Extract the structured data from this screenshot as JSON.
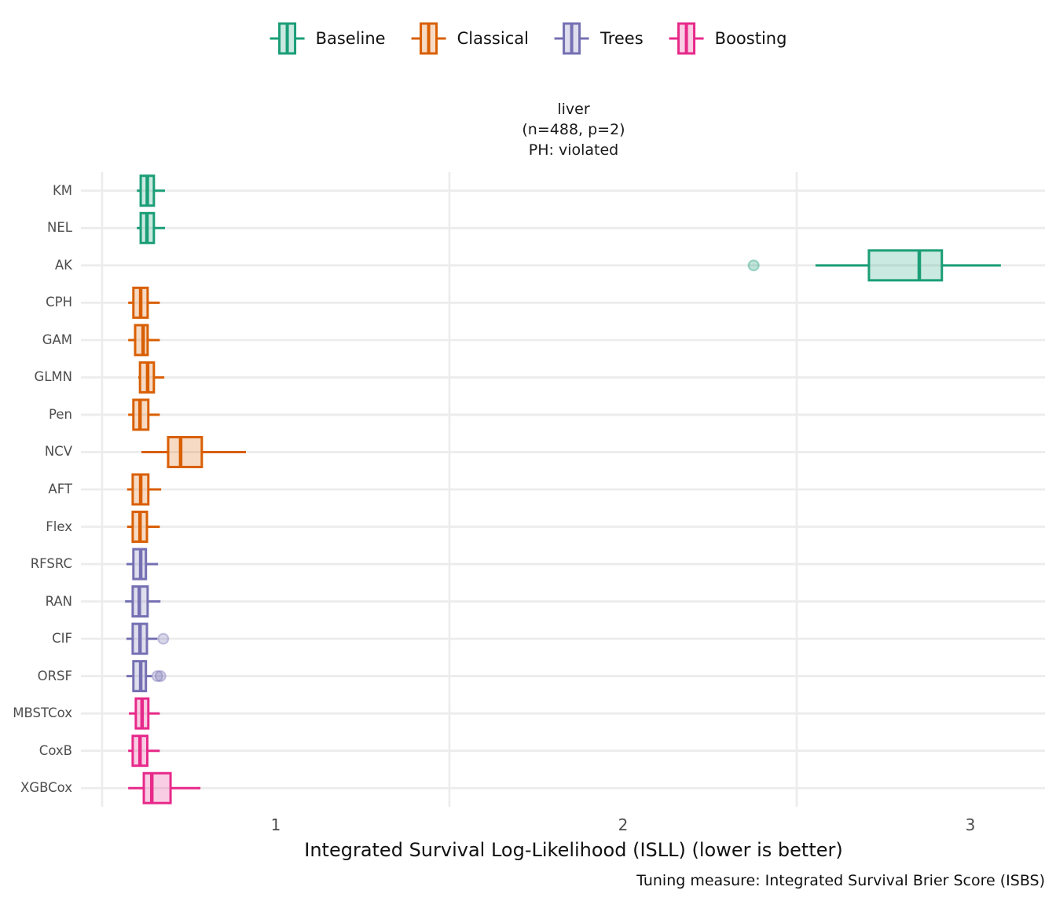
{
  "legend": {
    "items": [
      {
        "label": "Baseline",
        "group": "baseline"
      },
      {
        "label": "Classical",
        "group": "classical"
      },
      {
        "label": "Trees",
        "group": "trees"
      },
      {
        "label": "Boosting",
        "group": "boosting"
      }
    ]
  },
  "colors": {
    "baseline": "#1B9E77",
    "classical": "#D95F02",
    "trees": "#7570B3",
    "boosting": "#E7298A",
    "grid": "#ececec",
    "tick_text": "#4d4d4d",
    "text": "#111111"
  },
  "chart_data": {
    "type": "boxplot",
    "orientation": "horizontal",
    "title_lines": [
      "liver",
      "(n=488, p=2)",
      "PH: violated"
    ],
    "xlabel": "Integrated Survival Log-Likelihood (ISLL) (lower is better)",
    "caption": "Tuning measure: Integrated Survival Brier Score (ISBS)",
    "x_ticks": [
      1,
      2,
      3
    ],
    "x_minor_gridlines": [
      0.5,
      1.5,
      2.5
    ],
    "xlim": [
      0.5,
      3.215
    ],
    "grid": "on",
    "legend_position": "top",
    "rows": [
      {
        "model": "KM",
        "group": "baseline",
        "min": 0.6,
        "q1": 0.611,
        "median": 0.63,
        "q3": 0.649,
        "max": 0.681,
        "outliers": []
      },
      {
        "model": "NEL",
        "group": "baseline",
        "min": 0.6,
        "q1": 0.611,
        "median": 0.629,
        "q3": 0.649,
        "max": 0.681,
        "outliers": []
      },
      {
        "model": "AK",
        "group": "baseline",
        "min": 2.554,
        "q1": 2.708,
        "median": 2.853,
        "q3": 2.918,
        "max": 3.088,
        "outliers": [
          2.376
        ]
      },
      {
        "model": "CPH",
        "group": "classical",
        "min": 0.575,
        "q1": 0.59,
        "median": 0.611,
        "q3": 0.631,
        "max": 0.666,
        "outliers": []
      },
      {
        "model": "GAM",
        "group": "classical",
        "min": 0.575,
        "q1": 0.595,
        "median": 0.618,
        "q3": 0.631,
        "max": 0.666,
        "outliers": []
      },
      {
        "model": "GLMN",
        "group": "classical",
        "min": 0.604,
        "q1": 0.609,
        "median": 0.631,
        "q3": 0.649,
        "max": 0.679,
        "outliers": []
      },
      {
        "model": "Pen",
        "group": "classical",
        "min": 0.575,
        "q1": 0.59,
        "median": 0.609,
        "q3": 0.633,
        "max": 0.666,
        "outliers": []
      },
      {
        "model": "NCV",
        "group": "classical",
        "min": 0.613,
        "q1": 0.69,
        "median": 0.726,
        "q3": 0.787,
        "max": 0.914,
        "outliers": []
      },
      {
        "model": "AFT",
        "group": "classical",
        "min": 0.572,
        "q1": 0.588,
        "median": 0.611,
        "q3": 0.633,
        "max": 0.67,
        "outliers": []
      },
      {
        "model": "Flex",
        "group": "classical",
        "min": 0.572,
        "q1": 0.588,
        "median": 0.609,
        "q3": 0.629,
        "max": 0.666,
        "outliers": []
      },
      {
        "model": "RFSRC",
        "group": "trees",
        "min": 0.57,
        "q1": 0.59,
        "median": 0.611,
        "q3": 0.626,
        "max": 0.661,
        "outliers": []
      },
      {
        "model": "RAN",
        "group": "trees",
        "min": 0.566,
        "q1": 0.588,
        "median": 0.607,
        "q3": 0.631,
        "max": 0.668,
        "outliers": []
      },
      {
        "model": "CIF",
        "group": "trees",
        "min": 0.57,
        "q1": 0.588,
        "median": 0.609,
        "q3": 0.629,
        "max": 0.659,
        "outliers": [
          0.676
        ]
      },
      {
        "model": "ORSF",
        "group": "trees",
        "min": 0.57,
        "q1": 0.59,
        "median": 0.611,
        "q3": 0.626,
        "max": 0.643,
        "outliers": [
          0.659,
          0.668
        ]
      },
      {
        "model": "MBSTCox",
        "group": "boosting",
        "min": 0.577,
        "q1": 0.597,
        "median": 0.615,
        "q3": 0.633,
        "max": 0.666,
        "outliers": []
      },
      {
        "model": "CoxB",
        "group": "boosting",
        "min": 0.575,
        "q1": 0.588,
        "median": 0.609,
        "q3": 0.63,
        "max": 0.666,
        "outliers": []
      },
      {
        "model": "XGBCox",
        "group": "boosting",
        "min": 0.575,
        "q1": 0.62,
        "median": 0.643,
        "q3": 0.697,
        "max": 0.783,
        "outliers": []
      }
    ]
  }
}
